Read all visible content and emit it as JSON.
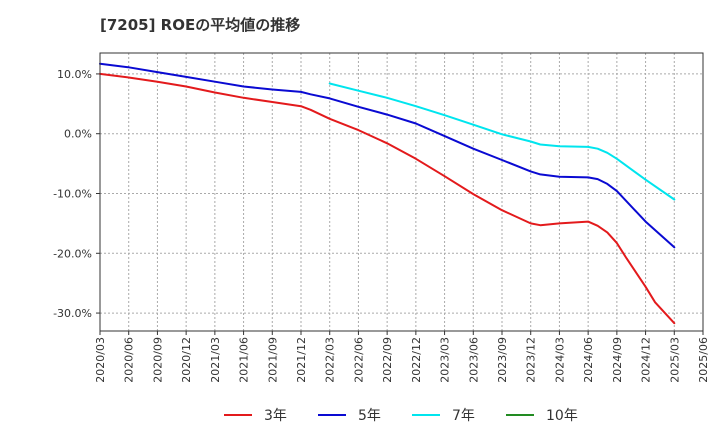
{
  "chart_data": {
    "type": "line",
    "title": "[7205]  ROEの平均値の推移",
    "xlabel": "",
    "ylabel": "",
    "categories": [
      "2020/03",
      "2020/06",
      "2020/09",
      "2020/12",
      "2021/03",
      "2021/06",
      "2021/09",
      "2021/12",
      "2022/03",
      "2022/06",
      "2022/09",
      "2022/12",
      "2023/03",
      "2023/06",
      "2023/09",
      "2023/12",
      "2024/03",
      "2024/06",
      "2024/09",
      "2024/12",
      "2025/03",
      "2025/06"
    ],
    "y_ticks": [
      "10.0%",
      "0.0%",
      "-10.0%",
      "-20.0%",
      "-30.0%"
    ],
    "ylim": [
      -33,
      13.5
    ],
    "grid": true,
    "legend_position": "bottom",
    "series": [
      {
        "name": "3年",
        "color": "#e31a1c",
        "x": [
          "2020/03",
          "2020/06",
          "2020/09",
          "2020/12",
          "2021/03",
          "2021/06",
          "2021/09",
          "2021/12",
          "2022/01",
          "2022/03",
          "2022/06",
          "2022/09",
          "2022/12",
          "2023/03",
          "2023/06",
          "2023/09",
          "2023/12",
          "2024/01",
          "2024/03",
          "2024/06",
          "2024/07",
          "2024/08",
          "2024/09",
          "2024/10",
          "2024/12",
          "2025/01",
          "2025/03"
        ],
        "values": [
          10.0,
          9.4,
          8.7,
          7.9,
          6.9,
          6.0,
          5.3,
          4.6,
          4.0,
          2.5,
          0.6,
          -1.6,
          -4.2,
          -7.1,
          -10.1,
          -12.8,
          -15.0,
          -15.3,
          -15.0,
          -14.7,
          -15.4,
          -16.5,
          -18.3,
          -20.8,
          -25.6,
          -28.2,
          -31.7
        ]
      },
      {
        "name": "5年",
        "color": "#0a0ad2",
        "x": [
          "2020/03",
          "2020/06",
          "2020/09",
          "2020/12",
          "2021/03",
          "2021/06",
          "2021/09",
          "2021/12",
          "2022/01",
          "2022/03",
          "2022/06",
          "2022/09",
          "2022/12",
          "2023/03",
          "2023/06",
          "2023/09",
          "2023/12",
          "2024/01",
          "2024/03",
          "2024/06",
          "2024/07",
          "2024/08",
          "2024/09",
          "2024/12",
          "2025/03"
        ],
        "values": [
          11.7,
          11.1,
          10.3,
          9.5,
          8.7,
          7.9,
          7.4,
          7.0,
          6.6,
          5.9,
          4.5,
          3.2,
          1.7,
          -0.4,
          -2.5,
          -4.4,
          -6.3,
          -6.8,
          -7.2,
          -7.3,
          -7.6,
          -8.4,
          -9.6,
          -14.7,
          -19.0
        ]
      },
      {
        "name": "7年",
        "color": "#00e5ee",
        "x": [
          "2022/03",
          "2022/06",
          "2022/09",
          "2022/12",
          "2023/03",
          "2023/06",
          "2023/09",
          "2023/12",
          "2024/01",
          "2024/03",
          "2024/06",
          "2024/07",
          "2024/08",
          "2024/09",
          "2024/12",
          "2025/03"
        ],
        "values": [
          8.4,
          7.2,
          6.0,
          4.6,
          3.1,
          1.5,
          -0.1,
          -1.3,
          -1.8,
          -2.1,
          -2.2,
          -2.5,
          -3.2,
          -4.2,
          -7.7,
          -11.0
        ]
      },
      {
        "name": "10年",
        "color": "#228b22",
        "x": [],
        "values": []
      }
    ]
  }
}
